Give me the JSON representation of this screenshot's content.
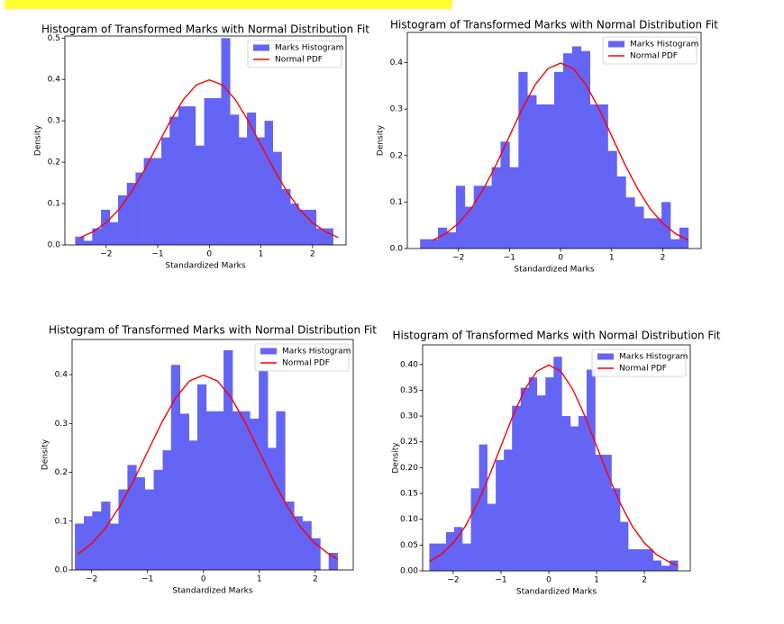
{
  "chart_data": [
    {
      "type": "histogram",
      "title": "Histogram of Transformed Marks with Normal Distribution Fit",
      "xlabel": "Standardized Marks",
      "ylabel": "Density",
      "legend": "upper right",
      "bins": [
        -2.6,
        -2.43,
        -2.27,
        -2.1,
        -1.93,
        -1.77,
        -1.6,
        -1.43,
        -1.27,
        -1.1,
        -0.93,
        -0.77,
        -0.6,
        -0.43,
        -0.27,
        -0.1,
        0.07,
        0.23,
        0.4,
        0.57,
        0.73,
        0.9,
        1.07,
        1.23,
        1.4,
        1.57,
        1.73,
        1.9,
        2.07,
        2.23,
        2.4
      ],
      "series": [
        {
          "name": "Marks Histogram",
          "type": "histogram",
          "color": "#6464f5",
          "values": [
            0.02,
            0.01,
            0.04,
            0.085,
            0.055,
            0.12,
            0.15,
            0.175,
            0.21,
            0.21,
            0.26,
            0.31,
            0.335,
            0.335,
            0.24,
            0.355,
            0.355,
            0.5,
            0.315,
            0.26,
            0.32,
            0.26,
            0.3,
            0.225,
            0.135,
            0.1,
            0.085,
            0.085,
            0.04,
            0.04
          ]
        },
        {
          "name": "Normal PDF",
          "type": "line",
          "color": "#ff0000",
          "x": [
            -2.5,
            -2.25,
            -2,
            -1.75,
            -1.5,
            -1.25,
            -1,
            -0.75,
            -0.5,
            -0.25,
            0,
            0.25,
            0.5,
            0.75,
            1,
            1.25,
            1.5,
            1.75,
            2,
            2.25,
            2.5
          ],
          "values": [
            0.018,
            0.032,
            0.054,
            0.086,
            0.13,
            0.183,
            0.242,
            0.301,
            0.352,
            0.387,
            0.399,
            0.387,
            0.352,
            0.301,
            0.242,
            0.183,
            0.13,
            0.086,
            0.054,
            0.032,
            0.018
          ]
        }
      ],
      "xlim": [
        -2.8,
        2.65
      ],
      "ylim": [
        0,
        0.505
      ],
      "xticks": [
        {
          "value": -2,
          "label": "−2"
        },
        {
          "value": -1,
          "label": "−1"
        },
        0,
        1,
        2
      ],
      "yticks": [
        {
          "value": 0,
          "label": "0.0"
        },
        0.1,
        0.2,
        0.3,
        0.4,
        0.5
      ]
    },
    {
      "type": "histogram",
      "title": "Histogram of Transformed Marks with Normal Distribution Fit",
      "xlabel": "Standardized Marks",
      "ylabel": "Density",
      "legend": "upper right",
      "bins": [
        -2.75,
        -2.575,
        -2.4,
        -2.225,
        -2.05,
        -1.875,
        -1.7,
        -1.525,
        -1.35,
        -1.175,
        -1,
        -0.825,
        -0.65,
        -0.475,
        -0.3,
        -0.125,
        0.05,
        0.225,
        0.4,
        0.575,
        0.75,
        0.925,
        1.1,
        1.275,
        1.45,
        1.625,
        1.8,
        1.975,
        2.15,
        2.325,
        2.5
      ],
      "series": [
        {
          "name": "Marks Histogram",
          "type": "histogram",
          "color": "#6464f5",
          "values": [
            0.02,
            0.02,
            0.045,
            0.035,
            0.135,
            0.09,
            0.135,
            0.135,
            0.175,
            0.23,
            0.175,
            0.38,
            0.33,
            0.31,
            0.31,
            0.38,
            0.42,
            0.435,
            0.425,
            0.31,
            0.31,
            0.21,
            0.155,
            0.11,
            0.09,
            0.065,
            0.065,
            0.1,
            0.02,
            0.045
          ]
        },
        {
          "name": "Normal PDF",
          "type": "line",
          "color": "#ff0000",
          "x": [
            -2.5,
            -2.25,
            -2,
            -1.75,
            -1.5,
            -1.25,
            -1,
            -0.75,
            -0.5,
            -0.25,
            0,
            0.25,
            0.5,
            0.75,
            1,
            1.25,
            1.5,
            1.75,
            2,
            2.25,
            2.5
          ],
          "values": [
            0.018,
            0.032,
            0.054,
            0.086,
            0.13,
            0.183,
            0.242,
            0.301,
            0.352,
            0.387,
            0.399,
            0.387,
            0.352,
            0.301,
            0.242,
            0.183,
            0.13,
            0.086,
            0.054,
            0.032,
            0.018
          ]
        }
      ],
      "xlim": [
        -3,
        2.75
      ],
      "ylim": [
        0,
        0.465
      ],
      "xticks": [
        {
          "value": -2,
          "label": "−2"
        },
        {
          "value": -1,
          "label": "−1"
        },
        0,
        1,
        2
      ],
      "yticks": [
        {
          "value": 0,
          "label": "0.0"
        },
        0.1,
        0.2,
        0.3,
        0.4
      ]
    },
    {
      "type": "histogram",
      "title": "Histogram of Transformed Marks with Normal Distribution Fit",
      "xlabel": "Standardized Marks",
      "ylabel": "Density",
      "legend": "upper right",
      "bins": [
        -2.3,
        -2.14,
        -1.99,
        -1.83,
        -1.67,
        -1.52,
        -1.36,
        -1.2,
        -1.05,
        -0.89,
        -0.73,
        -0.58,
        -0.42,
        -0.26,
        -0.11,
        0.05,
        0.21,
        0.36,
        0.52,
        0.68,
        0.83,
        0.99,
        1.15,
        1.3,
        1.46,
        1.62,
        1.77,
        1.93,
        2.09,
        2.24,
        2.4
      ],
      "series": [
        {
          "name": "Marks Histogram",
          "type": "histogram",
          "color": "#6464f5",
          "values": [
            0.095,
            0.11,
            0.12,
            0.14,
            0.095,
            0.165,
            0.215,
            0.19,
            0.165,
            0.205,
            0.245,
            0.42,
            0.32,
            0.265,
            0.38,
            0.325,
            0.325,
            0.45,
            0.325,
            0.325,
            0.31,
            0.41,
            0.25,
            0.325,
            0.14,
            0.11,
            0.1,
            0.065,
            0,
            0.035
          ]
        },
        {
          "name": "Normal PDF",
          "type": "line",
          "color": "#ff0000",
          "x": [
            -2.25,
            -2,
            -1.75,
            -1.5,
            -1.25,
            -1,
            -0.75,
            -0.5,
            -0.25,
            0,
            0.25,
            0.5,
            0.75,
            1,
            1.25,
            1.5,
            1.75,
            2,
            2.25,
            2.4
          ],
          "values": [
            0.032,
            0.054,
            0.086,
            0.13,
            0.183,
            0.242,
            0.301,
            0.352,
            0.387,
            0.399,
            0.387,
            0.352,
            0.301,
            0.242,
            0.183,
            0.13,
            0.086,
            0.054,
            0.032,
            0.022
          ]
        }
      ],
      "xlim": [
        -2.35,
        2.68
      ],
      "ylim": [
        0,
        0.472
      ],
      "xticks": [
        {
          "value": -2,
          "label": "−2"
        },
        {
          "value": -1,
          "label": "−1"
        },
        0,
        1,
        2
      ],
      "yticks": [
        {
          "value": 0,
          "label": "0.0"
        },
        0.1,
        0.2,
        0.3,
        0.4
      ]
    },
    {
      "type": "histogram",
      "title": "Histogram of Transformed Marks with Normal Distribution Fit",
      "xlabel": "Standardized Marks",
      "ylabel": "Density",
      "legend": "upper right",
      "bins": [
        -2.5,
        -2.33,
        -2.15,
        -1.98,
        -1.81,
        -1.63,
        -1.46,
        -1.29,
        -1.11,
        -0.94,
        -0.77,
        -0.59,
        -0.42,
        -0.25,
        -0.07,
        0.1,
        0.27,
        0.45,
        0.62,
        0.79,
        0.97,
        1.14,
        1.31,
        1.49,
        1.66,
        1.83,
        2.01,
        2.18,
        2.35,
        2.53,
        2.7
      ],
      "series": [
        {
          "name": "Marks Histogram",
          "type": "histogram",
          "color": "#6464f5",
          "values": [
            0.053,
            0.053,
            0.075,
            0.085,
            0.053,
            0.16,
            0.245,
            0.13,
            0.215,
            0.235,
            0.32,
            0.355,
            0.375,
            0.34,
            0.375,
            0.415,
            0.3,
            0.28,
            0.3,
            0.39,
            0.225,
            0.225,
            0.16,
            0.095,
            0.042,
            0.042,
            0.042,
            0.02,
            0.01,
            0.02
          ]
        },
        {
          "name": "Normal PDF",
          "type": "line",
          "color": "#ff0000",
          "x": [
            -2.5,
            -2.25,
            -2,
            -1.75,
            -1.5,
            -1.25,
            -1,
            -0.75,
            -0.5,
            -0.25,
            0,
            0.25,
            0.5,
            0.75,
            1,
            1.25,
            1.5,
            1.75,
            2,
            2.25,
            2.5,
            2.7
          ],
          "values": [
            0.018,
            0.032,
            0.054,
            0.086,
            0.13,
            0.183,
            0.242,
            0.301,
            0.352,
            0.387,
            0.399,
            0.387,
            0.352,
            0.301,
            0.242,
            0.183,
            0.13,
            0.086,
            0.054,
            0.032,
            0.018,
            0.01
          ]
        }
      ],
      "xlim": [
        -2.64,
        2.96
      ],
      "ylim": [
        0,
        0.438
      ],
      "xticks": [
        {
          "value": -2,
          "label": "−2"
        },
        {
          "value": -1,
          "label": "−1"
        },
        0,
        1,
        2
      ],
      "yticks": [
        {
          "value": 0,
          "label": "0.00"
        },
        0.05,
        {
          "value": 0.1,
          "label": "0.10"
        },
        0.15,
        {
          "value": 0.2,
          "label": "0.20"
        },
        0.25,
        {
          "value": 0.3,
          "label": "0.30"
        },
        0.35,
        {
          "value": 0.4,
          "label": "0.40"
        }
      ]
    }
  ]
}
